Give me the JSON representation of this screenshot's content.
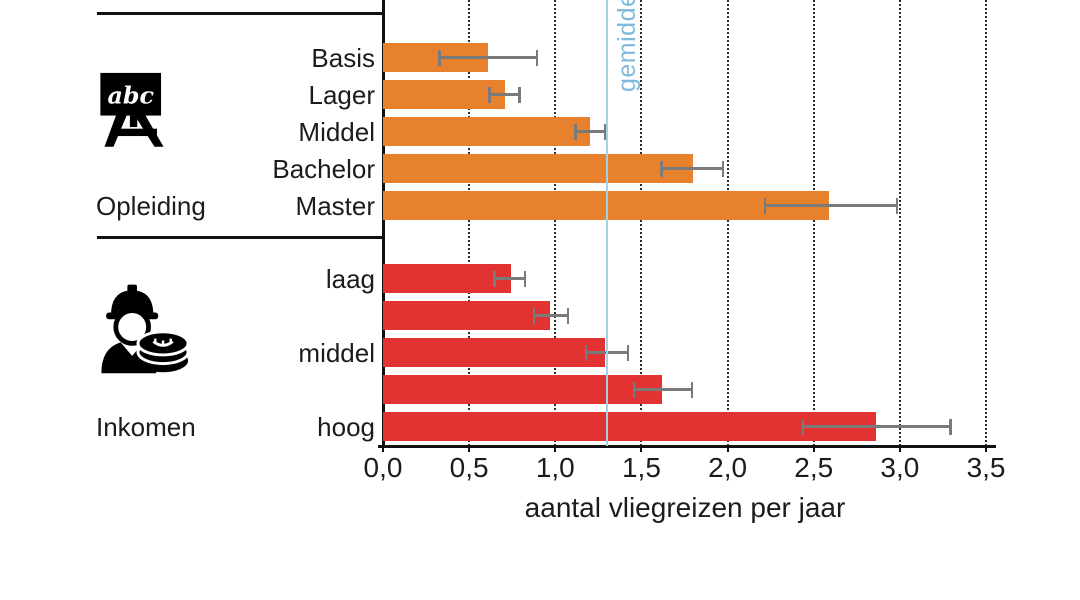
{
  "chart_data": {
    "type": "bar",
    "orientation": "horizontal",
    "title": "",
    "xlabel": "aantal vliegreizen per jaar",
    "xlim": [
      0,
      3.5
    ],
    "grid": "dotted-vertical",
    "x_ticks": [
      {
        "value": 0.0,
        "label": "0,0"
      },
      {
        "value": 0.5,
        "label": "0,5"
      },
      {
        "value": 1.0,
        "label": "1,0"
      },
      {
        "value": 1.5,
        "label": "1,5"
      },
      {
        "value": 2.0,
        "label": "2,0"
      },
      {
        "value": 2.5,
        "label": "2,5"
      },
      {
        "value": 3.0,
        "label": "3,0"
      },
      {
        "value": 3.5,
        "label": "3,5"
      }
    ],
    "average_line": {
      "value": 1.3,
      "label": "gemiddelde",
      "line_color": "#A6D0E8",
      "text_color": "#7FB9DC"
    },
    "error_bar_color": "#7A7A7A",
    "groups": [
      {
        "name": "Opleiding",
        "icon": "education-blackboard-icon",
        "icon_text": "abc",
        "color": "#E8812E",
        "bars": [
          {
            "label": "Basis",
            "value": 0.61,
            "ci": [
              0.32,
              0.9
            ]
          },
          {
            "label": "Lager",
            "value": 0.71,
            "ci": [
              0.61,
              0.8
            ]
          },
          {
            "label": "Middel",
            "value": 1.2,
            "ci": [
              1.11,
              1.3
            ]
          },
          {
            "label": "Bachelor",
            "value": 1.8,
            "ci": [
              1.61,
              1.98
            ]
          },
          {
            "label": "Master",
            "value": 2.59,
            "ci": [
              2.21,
              2.99
            ]
          }
        ]
      },
      {
        "name": "Inkomen",
        "icon": "income-worker-coins-icon",
        "icon_text": "",
        "color": "#E23333",
        "bars": [
          {
            "label": "laag",
            "value": 0.74,
            "ci": [
              0.64,
              0.83
            ]
          },
          {
            "label": "",
            "value": 0.97,
            "ci": [
              0.87,
              1.08
            ]
          },
          {
            "label": "middel",
            "value": 1.29,
            "ci": [
              1.17,
              1.43
            ]
          },
          {
            "label": "",
            "value": 1.62,
            "ci": [
              1.45,
              1.8
            ]
          },
          {
            "label": "hoog",
            "value": 2.86,
            "ci": [
              2.43,
              3.3
            ]
          }
        ]
      }
    ]
  }
}
